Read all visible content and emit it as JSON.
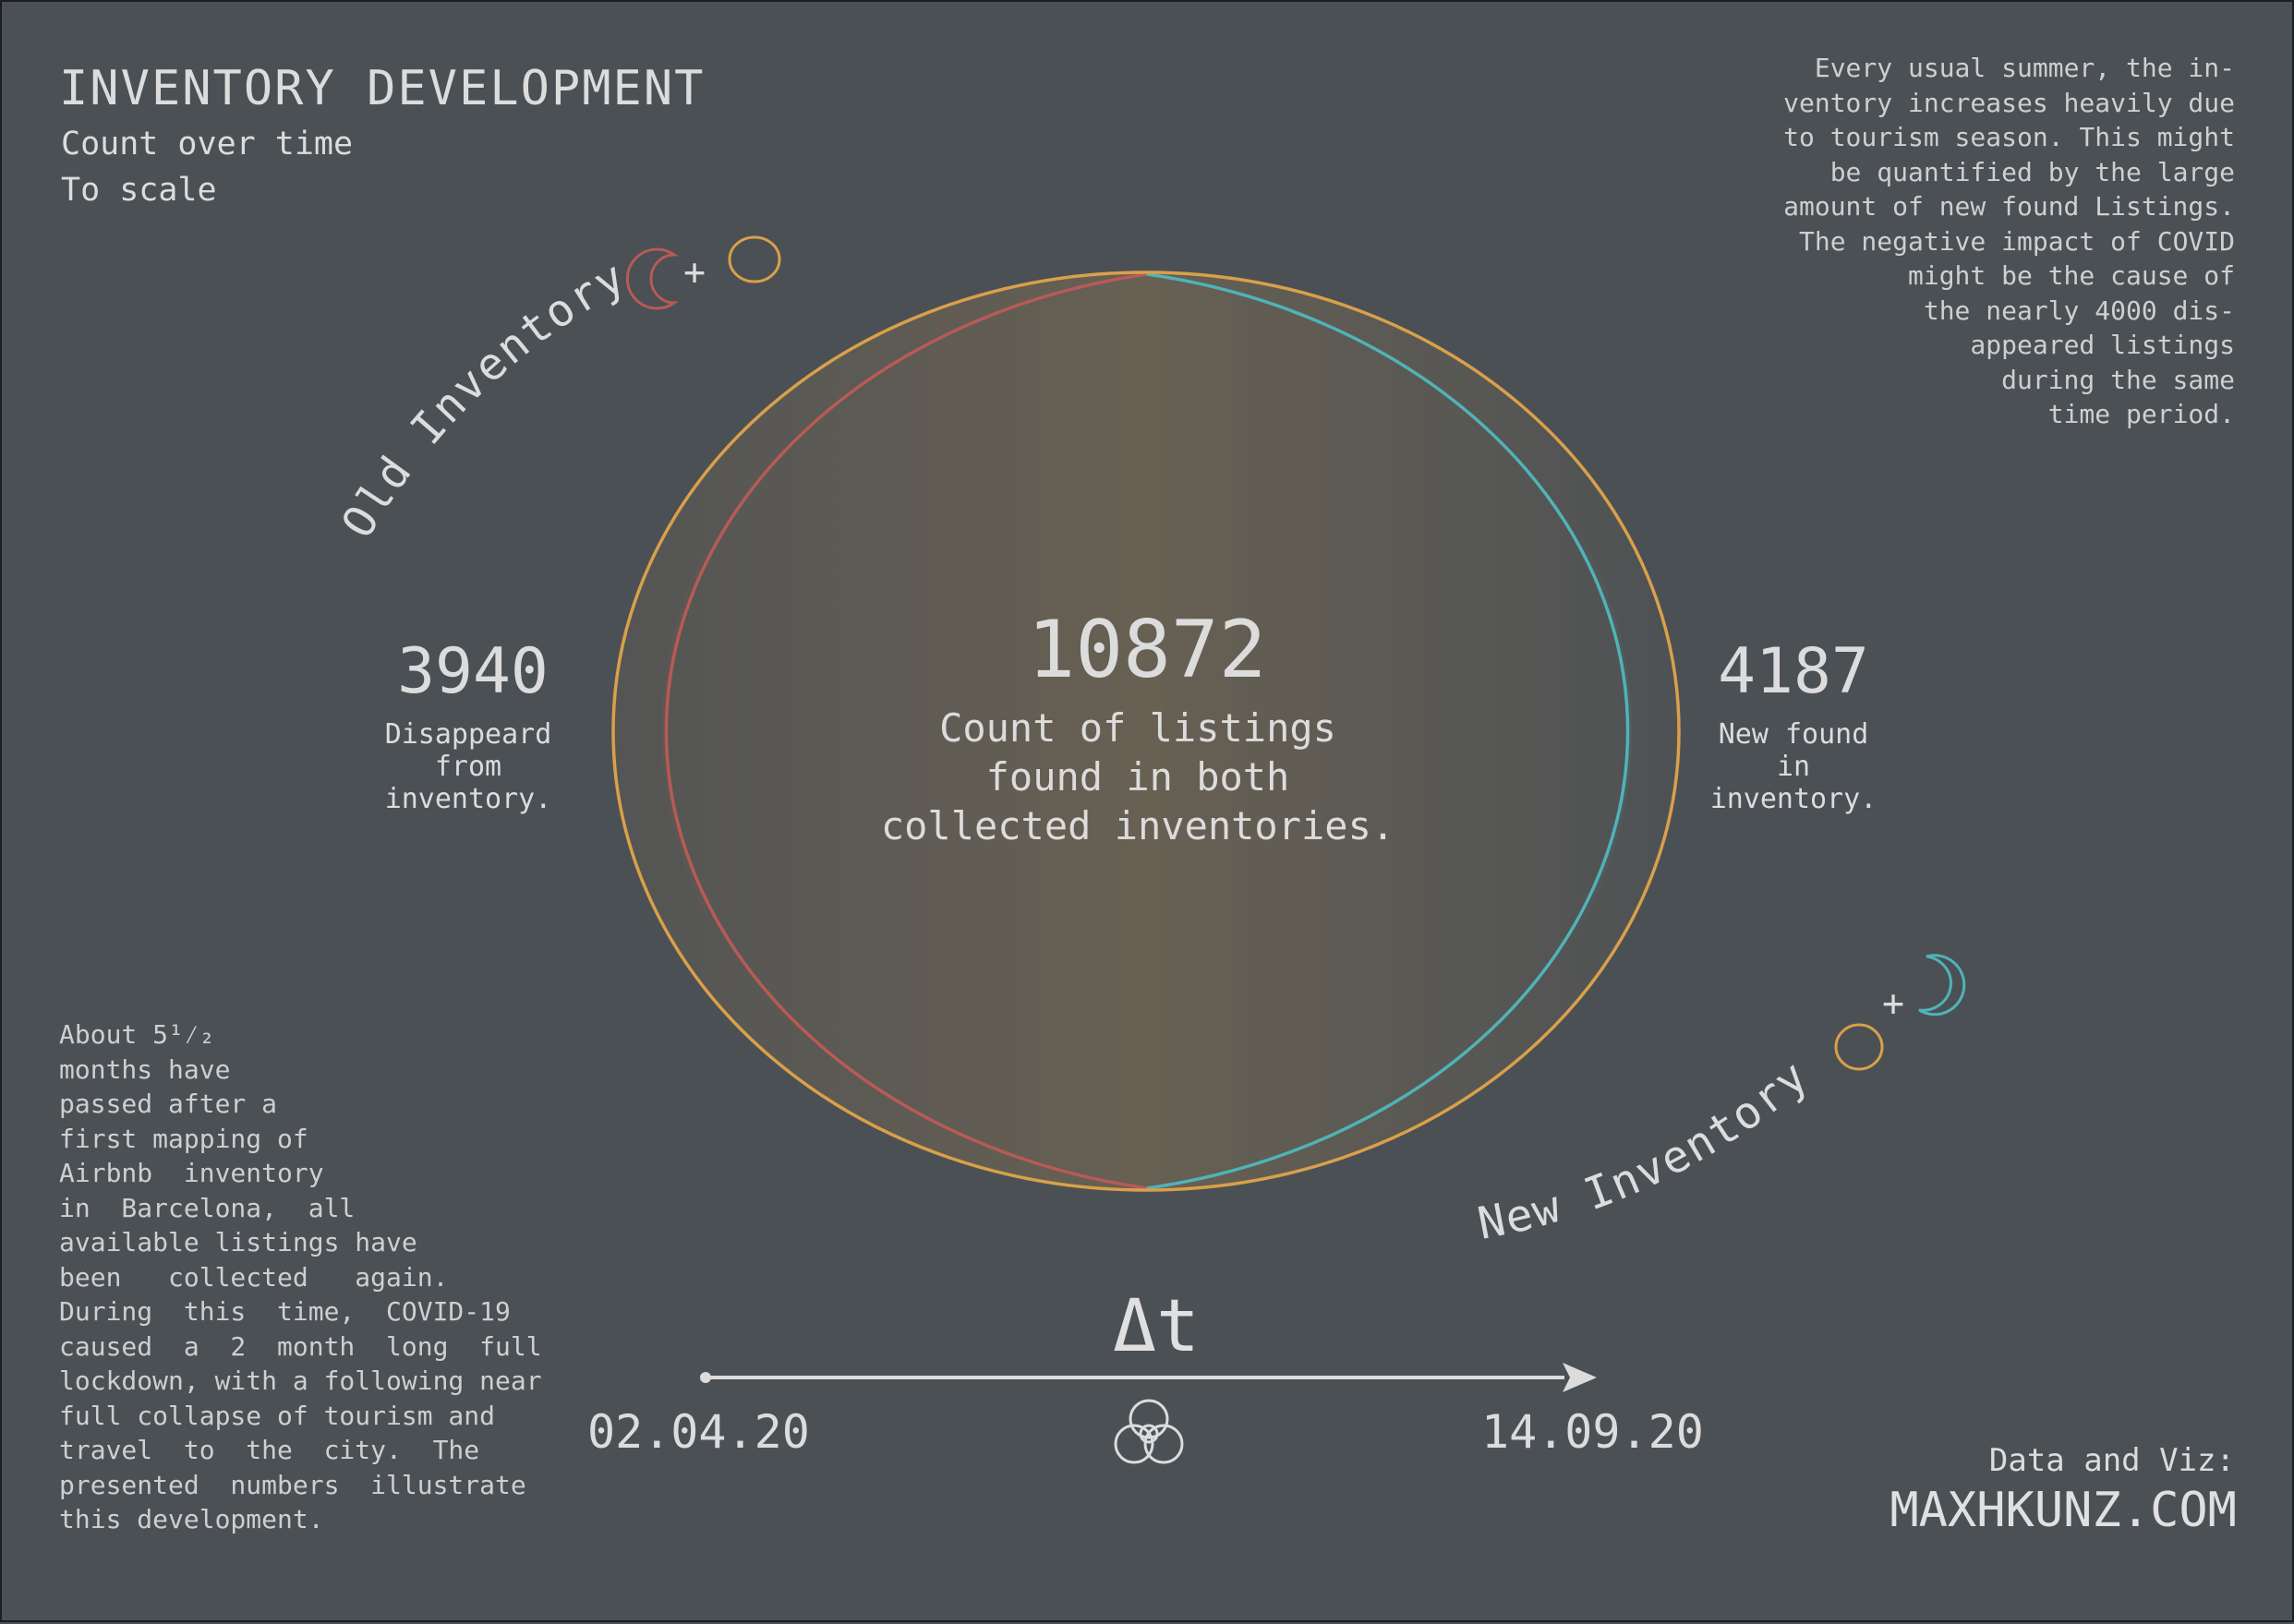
{
  "header": {
    "title": "INVENTORY DEVELOPMENT",
    "subtitle_lines": [
      "Count over time",
      "To scale"
    ]
  },
  "right_note": {
    "lines": [
      "Every usual summer, the in-",
      "ventory increases heavily due",
      "to tourism season. This might",
      "be quantified by the large",
      "amount of new found Listings.",
      "The negative impact of COVID",
      "might be the cause of",
      "the nearly 4000 dis-",
      "appeared listings",
      "during the same",
      "time period."
    ]
  },
  "left_note": {
    "lines": [
      "About 5¹⁄₂",
      "months have",
      "passed after a",
      "first mapping of",
      "Airbnb  inventory",
      "in  Barcelona,  all",
      "available listings have",
      "been   collected   again.",
      "During  this  time,  COVID-19",
      "caused  a  2  month  long  full",
      "lockdown, with a following near",
      "full collapse of tourism and",
      "travel  to  the  city.  The",
      "presented  numbers  illustrate",
      "this development."
    ]
  },
  "venn": {
    "old_label": "Old Inventory",
    "new_label": "New Inventory",
    "disappeared": {
      "value": "3940",
      "desc_lines": [
        "Disappeard",
        "from",
        "inventory."
      ]
    },
    "both": {
      "value": "10872",
      "desc_lines": [
        "Count of listings",
        "found in both",
        "collected inventories."
      ]
    },
    "new_found": {
      "value": "4187",
      "desc_lines": [
        "New found",
        "in",
        "inventory."
      ]
    },
    "colors": {
      "old": "#b85a55",
      "both": "#d9a04a",
      "new": "#4fb3b8",
      "background": "#4b5055"
    }
  },
  "timeline": {
    "symbol": "Δt",
    "start_date": "02.04.20",
    "end_date": "14.09.20",
    "icon": "biohazard-icon"
  },
  "credit": {
    "label": "Data and Viz:",
    "site": "MAXHKUNZ.COM"
  }
}
